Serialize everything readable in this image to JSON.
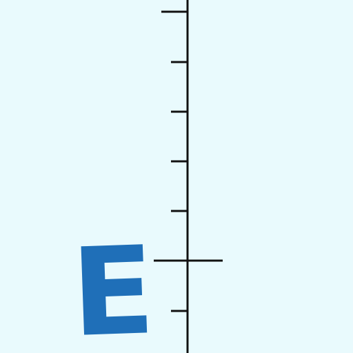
{
  "diagram": {
    "label": "E",
    "colors": {
      "background": "#e9fafd",
      "scale_line": "#111111",
      "label": "#1f6fb8"
    },
    "tick_count_above_cross": 5,
    "tick_count_below_cross": 1
  }
}
